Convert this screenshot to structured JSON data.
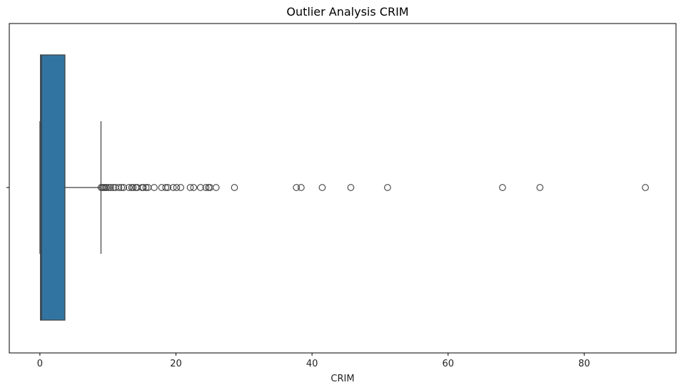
{
  "chart_data": {
    "type": "box",
    "orientation": "horizontal",
    "title": "Outlier Analysis CRIM",
    "xlabel": "CRIM",
    "ylabel": "",
    "xlim": [
      -4.5,
      93.5
    ],
    "xticks": [
      0,
      20,
      40,
      60,
      80
    ],
    "yticks": [
      ""
    ],
    "grid": false,
    "box_color": "#3274a1",
    "line_color": "#3f3f3f",
    "box": {
      "whislo": 0.006,
      "q1": 0.08,
      "median": 0.26,
      "q3": 3.68,
      "whishi": 8.98
    },
    "outliers": [
      9.0,
      9.2,
      9.4,
      9.6,
      9.8,
      10.1,
      10.4,
      10.8,
      11.1,
      11.6,
      12.0,
      12.3,
      13.1,
      13.5,
      13.7,
      14.1,
      14.3,
      15.0,
      15.2,
      15.6,
      15.9,
      16.8,
      17.9,
      18.5,
      18.8,
      19.6,
      20.1,
      20.7,
      22.1,
      22.6,
      23.6,
      24.4,
      24.8,
      25.0,
      25.9,
      28.6,
      37.7,
      38.4,
      41.5,
      45.7,
      51.1,
      68.0,
      73.5,
      89.0
    ]
  }
}
